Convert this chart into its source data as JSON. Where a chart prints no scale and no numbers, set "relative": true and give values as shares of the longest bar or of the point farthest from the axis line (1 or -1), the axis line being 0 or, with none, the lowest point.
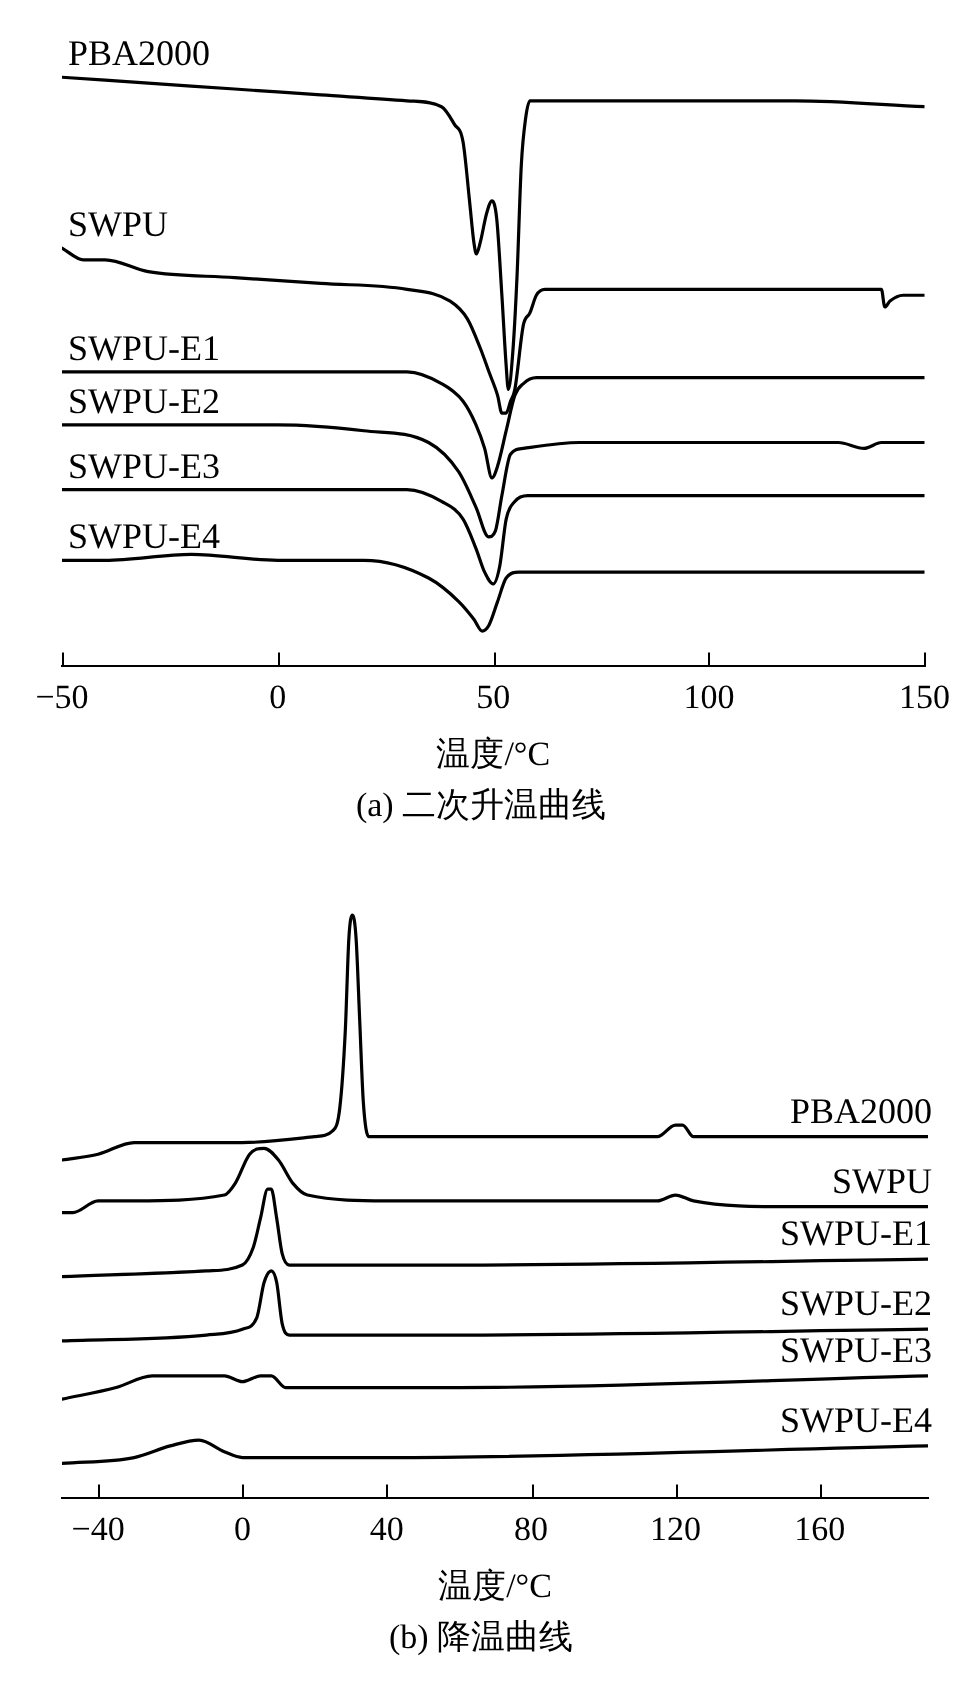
{
  "chart_data": [
    {
      "type": "line",
      "title": "(a) 二次升温曲线",
      "xlabel": "温度/°C",
      "relative": true,
      "tick_labels": "x",
      "marker": "none",
      "xlim": [
        -50,
        150
      ],
      "xticks": [
        {
          "value": -50,
          "label": "−50"
        },
        0,
        50,
        100,
        150
      ],
      "series": [
        {
          "name": "PBA2000",
          "color": "#000000",
          "x": [
            -50,
            -30,
            -10,
            10,
            30,
            38,
            41,
            43,
            44.5,
            45.5,
            46.1,
            47,
            48.5,
            49.7,
            50.8,
            52,
            53,
            53.5,
            54.5,
            55.5,
            56.5,
            57.5,
            58.5,
            80,
            120,
            150
          ],
          "values": [
            1.0,
            0.99,
            0.98,
            0.97,
            0.96,
            0.95,
            0.92,
            0.89,
            0.79,
            0.72,
            0.7,
            0.72,
            0.77,
            0.79,
            0.76,
            0.63,
            0.51,
            0.47,
            0.53,
            0.66,
            0.85,
            0.93,
            0.96,
            0.96,
            0.96,
            0.95
          ]
        },
        {
          "name": "SWPU",
          "color": "#000000",
          "x": [
            -50,
            -45,
            -40,
            -30,
            -10,
            10,
            30,
            40,
            44,
            47,
            49,
            51,
            52,
            53,
            54,
            55,
            57,
            58.5,
            60,
            62,
            100,
            140,
            140.8,
            142,
            145,
            150
          ],
          "values": [
            0.71,
            0.69,
            0.69,
            0.67,
            0.66,
            0.65,
            0.64,
            0.62,
            0.59,
            0.54,
            0.5,
            0.46,
            0.43,
            0.43,
            0.45,
            0.47,
            0.58,
            0.6,
            0.63,
            0.64,
            0.64,
            0.64,
            0.61,
            0.62,
            0.63,
            0.63
          ]
        },
        {
          "name": "SWPU-E1",
          "color": "#000000",
          "x": [
            -50,
            0,
            30,
            38,
            43,
            46,
            48,
            49.7,
            51,
            53,
            55,
            57,
            60,
            100,
            150
          ],
          "values": [
            0.5,
            0.5,
            0.5,
            0.48,
            0.45,
            0.41,
            0.37,
            0.32,
            0.34,
            0.4,
            0.46,
            0.48,
            0.49,
            0.49,
            0.49
          ]
        },
        {
          "name": "SWPU-E2",
          "color": "#000000",
          "x": [
            -50,
            -40,
            -20,
            0,
            20,
            35,
            42,
            46,
            48.9,
            50.5,
            52,
            54,
            57,
            70,
            130,
            136,
            140,
            150
          ],
          "values": [
            0.41,
            0.41,
            0.41,
            0.41,
            0.4,
            0.38,
            0.33,
            0.27,
            0.22,
            0.23,
            0.29,
            0.36,
            0.37,
            0.38,
            0.38,
            0.37,
            0.38,
            0.38
          ]
        },
        {
          "name": "SWPU-E3",
          "color": "#000000",
          "x": [
            -50,
            0,
            30,
            38,
            43,
            46,
            48,
            50,
            51.5,
            53,
            55,
            58,
            150
          ],
          "values": [
            0.3,
            0.3,
            0.3,
            0.28,
            0.25,
            0.2,
            0.16,
            0.14,
            0.17,
            0.25,
            0.28,
            0.29,
            0.29
          ]
        },
        {
          "name": "SWPU-E4",
          "color": "#000000",
          "x": [
            -50,
            -40,
            -20,
            0,
            20,
            35,
            42,
            45.5,
            47.4,
            49,
            51,
            53,
            56,
            80,
            150
          ],
          "values": [
            0.18,
            0.18,
            0.19,
            0.18,
            0.18,
            0.15,
            0.11,
            0.08,
            0.06,
            0.07,
            0.11,
            0.15,
            0.16,
            0.16,
            0.16
          ]
        }
      ]
    },
    {
      "type": "line",
      "title": "(b) 降温曲线",
      "xlabel": "温度/°C",
      "relative": true,
      "tick_labels": "x",
      "marker": "none",
      "xlim": [
        -50,
        190
      ],
      "xticks": [
        {
          "value": -40,
          "label": "−40"
        },
        0,
        40,
        80,
        120,
        160
      ],
      "series": [
        {
          "name": "PBA2000",
          "color": "#000000",
          "x": [
            -50,
            -40,
            -30,
            0,
            20,
            25,
            27,
            28.5,
            29.5,
            30.5,
            31.5,
            32.5,
            33.5,
            35,
            60,
            115,
            120,
            122,
            125,
            150,
            190
          ],
          "values": [
            0.58,
            0.59,
            0.61,
            0.61,
            0.62,
            0.63,
            0.67,
            0.8,
            0.96,
            1.0,
            0.96,
            0.82,
            0.68,
            0.62,
            0.62,
            0.62,
            0.64,
            0.64,
            0.62,
            0.62,
            0.62
          ]
        },
        {
          "name": "SWPU",
          "color": "#000000",
          "x": [
            -50,
            -47,
            -40,
            -30,
            -5,
            -2,
            2,
            6,
            10,
            14,
            18,
            40,
            100,
            115,
            120,
            125,
            150,
            190
          ],
          "values": [
            0.49,
            0.49,
            0.51,
            0.51,
            0.52,
            0.54,
            0.59,
            0.6,
            0.58,
            0.54,
            0.52,
            0.51,
            0.51,
            0.51,
            0.52,
            0.51,
            0.5,
            0.5
          ]
        },
        {
          "name": "SWPU-E1",
          "color": "#000000",
          "x": [
            -50,
            -10,
            0,
            3,
            5,
            7,
            8,
            9.5,
            11,
            13,
            60,
            190
          ],
          "values": [
            0.38,
            0.39,
            0.4,
            0.43,
            0.48,
            0.53,
            0.53,
            0.48,
            0.42,
            0.4,
            0.4,
            0.41
          ]
        },
        {
          "name": "SWPU-E2",
          "color": "#000000",
          "x": [
            -50,
            -10,
            0,
            4,
            6,
            8,
            9.5,
            11,
            13,
            60,
            190
          ],
          "values": [
            0.27,
            0.28,
            0.29,
            0.31,
            0.37,
            0.39,
            0.37,
            0.3,
            0.28,
            0.28,
            0.29
          ]
        },
        {
          "name": "SWPU-E3",
          "color": "#000000",
          "x": [
            -50,
            -35,
            -25,
            -15,
            -5,
            0,
            5,
            8,
            12,
            60,
            190
          ],
          "values": [
            0.17,
            0.19,
            0.21,
            0.21,
            0.21,
            0.2,
            0.21,
            0.21,
            0.19,
            0.19,
            0.21
          ]
        },
        {
          "name": "SWPU-E4",
          "color": "#000000",
          "x": [
            -50,
            -30,
            -20,
            -12,
            -5,
            0,
            40,
            190
          ],
          "values": [
            0.06,
            0.07,
            0.09,
            0.1,
            0.08,
            0.07,
            0.07,
            0.09
          ]
        }
      ]
    }
  ]
}
